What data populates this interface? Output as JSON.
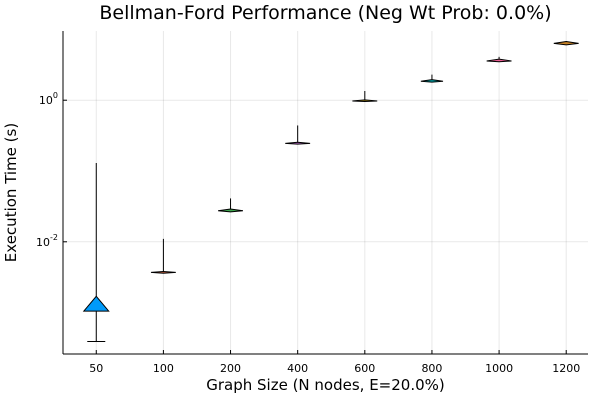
{
  "chart_data": {
    "type": "violin",
    "title": "Bellman-Ford Performance (Neg Wt Prob: 0.0%)",
    "xlabel": "Graph Size (N nodes, E=20.0%)",
    "ylabel": "Execution Time (s)",
    "yscale": "log10",
    "ylim": [
      0.00026,
      9.5
    ],
    "yticks": [
      {
        "value": 0.01,
        "base": "10",
        "exp": "-2"
      },
      {
        "value": 1,
        "base": "10",
        "exp": "0"
      }
    ],
    "grid": true,
    "legend": "none",
    "categories": [
      "50",
      "100",
      "200",
      "400",
      "600",
      "800",
      "1000",
      "1200"
    ],
    "series": [
      {
        "category": "50",
        "color": "#009AFA",
        "min": 0.00039,
        "max": 0.13,
        "body_low": 0.00105,
        "body_high": 0.0017,
        "peak": 0.00105,
        "max_width": 0.37
      },
      {
        "category": "100",
        "color": "#E36F47",
        "min": 0.0037,
        "max": 0.011,
        "body_low": 0.0036,
        "body_high": 0.0038,
        "peak": 0.0037,
        "max_width": 0.37
      },
      {
        "category": "200",
        "color": "#3EA44E",
        "min": 0.027,
        "max": 0.041,
        "body_low": 0.0265,
        "body_high": 0.029,
        "peak": 0.0275,
        "max_width": 0.37
      },
      {
        "category": "400",
        "color": "#C371D2",
        "min": 0.244,
        "max": 0.44,
        "body_low": 0.24,
        "body_high": 0.255,
        "peak": 0.246,
        "max_width": 0.37
      },
      {
        "category": "600",
        "color": "#AC8E18",
        "min": 0.97,
        "max": 1.35,
        "body_low": 0.96,
        "body_high": 1.01,
        "peak": 0.975,
        "max_width": 0.37
      },
      {
        "category": "800",
        "color": "#00A9AD",
        "min": 1.82,
        "max": 2.3,
        "body_low": 1.8,
        "body_high": 1.95,
        "peak": 1.85,
        "max_width": 0.33
      },
      {
        "category": "1000",
        "color": "#ED5E93",
        "min": 3.55,
        "max": 4.1,
        "body_low": 3.5,
        "body_high": 3.8,
        "peak": 3.58,
        "max_width": 0.37
      },
      {
        "category": "1200",
        "color": "#C68125",
        "min": 6.2,
        "max": 6.8,
        "body_low": 6.05,
        "body_high": 6.75,
        "peak": 6.35,
        "max_width": 0.37
      }
    ]
  }
}
